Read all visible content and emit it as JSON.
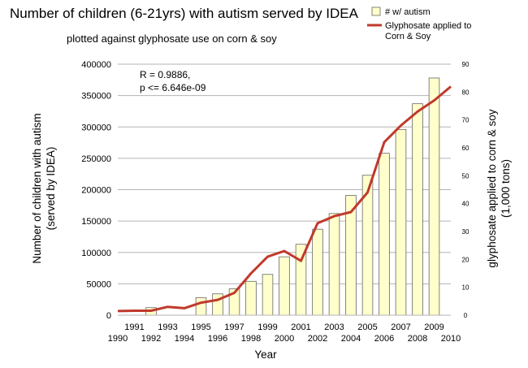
{
  "chart_data": {
    "type": "bar",
    "title": "Number of children (6-21yrs) with autism served by IDEA",
    "subtitle": "plotted against glyphosate use on corn & soy",
    "xlabel": "Year",
    "ylabel_left_line1": "Number of children with autism",
    "ylabel_left_line2": "(served by IDEA)",
    "ylabel_right_line1": "glyphosate applied to corn & soy",
    "ylabel_right_line2": "(1,000 tons)",
    "x_ticks_top": [
      "1991",
      "1993",
      "1995",
      "1997",
      "1999",
      "2001",
      "2003",
      "2005",
      "2007",
      "2009"
    ],
    "x_ticks_bottom": [
      "1990",
      "1992",
      "1994",
      "1996",
      "1998",
      "2000",
      "2002",
      "2004",
      "2006",
      "2008",
      "2010"
    ],
    "y_left_ticks": [
      "0",
      "50000",
      "100000",
      "150000",
      "200000",
      "250000",
      "300000",
      "350000",
      "400000"
    ],
    "y_right_ticks": [
      "0",
      "10",
      "20",
      "30",
      "40",
      "50",
      "60",
      "70",
      "80",
      "90"
    ],
    "ylim_left": [
      0,
      400000
    ],
    "ylim_right": [
      0,
      90
    ],
    "xlim": [
      1990,
      2010
    ],
    "annotation_line1": "R = 0.9886,",
    "annotation_line2": "p <= 6.646e-09",
    "legend_position": "top-right",
    "series": [
      {
        "name": "# w/ autism",
        "kind": "bar",
        "axis": "left",
        "color": "#ffffcc",
        "stroke": "#666666",
        "x": [
          1992,
          1995,
          1996,
          1997,
          1998,
          1999,
          2000,
          2001,
          2002,
          2003,
          2004,
          2005,
          2006,
          2007,
          2008,
          2009
        ],
        "values": [
          12000,
          28000,
          34000,
          42000,
          54000,
          65000,
          93000,
          113000,
          137000,
          162000,
          191000,
          223000,
          258000,
          296000,
          337000,
          378000
        ]
      },
      {
        "name_line1": "Glyphosate applied to",
        "name_line2": "Corn & Soy",
        "kind": "line",
        "axis": "right",
        "color": "#c0392b",
        "x": [
          1990,
          1991,
          1992,
          1993,
          1994,
          1995,
          1996,
          1997,
          1998,
          1999,
          2000,
          2001,
          2002,
          2003,
          2004,
          2005,
          2006,
          2007,
          2008,
          2009,
          2010
        ],
        "values": [
          1.5,
          1.6,
          1.6,
          3,
          2.5,
          4.5,
          5.5,
          8,
          15,
          21,
          23,
          19.5,
          33,
          35.5,
          37,
          44,
          62,
          68,
          73,
          77,
          82
        ]
      }
    ]
  }
}
